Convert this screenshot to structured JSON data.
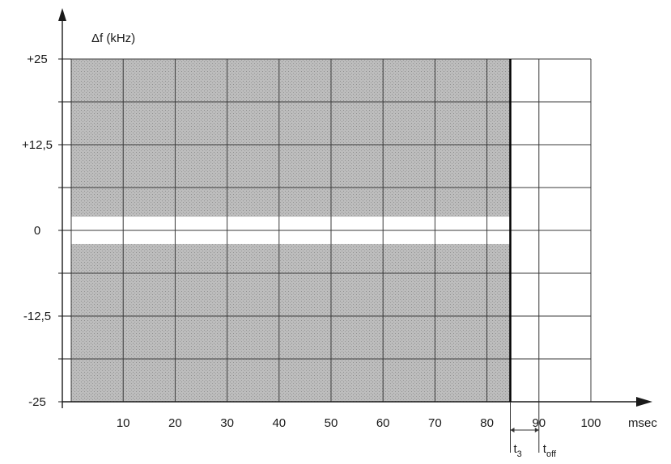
{
  "chart_data": {
    "type": "area",
    "title": "",
    "xlabel": "msec",
    "ylabel": "Δf (kHz)",
    "x_ticks": [
      "10",
      "20",
      "30",
      "40",
      "50",
      "60",
      "70",
      "80",
      "90",
      "100"
    ],
    "y_ticks": [
      "+25",
      "+12,5",
      "0",
      "-12,5",
      "-25"
    ],
    "xlim": [
      0,
      100
    ],
    "ylim": [
      -25,
      25
    ],
    "grid": true,
    "shaded_regions": [
      {
        "x": [
          0,
          84.5
        ],
        "y": [
          2,
          25
        ]
      },
      {
        "x": [
          0,
          84.5
        ],
        "y": [
          -25,
          -2
        ]
      }
    ],
    "markers": [
      {
        "label": "t",
        "subscript": "3",
        "x": 84.5
      },
      {
        "label": "t",
        "subscript": "off",
        "x": 90
      }
    ],
    "colors": {
      "shade": "#b9b9b9",
      "grid": "#3a3a3a",
      "axis": "#1a1a1a"
    }
  }
}
